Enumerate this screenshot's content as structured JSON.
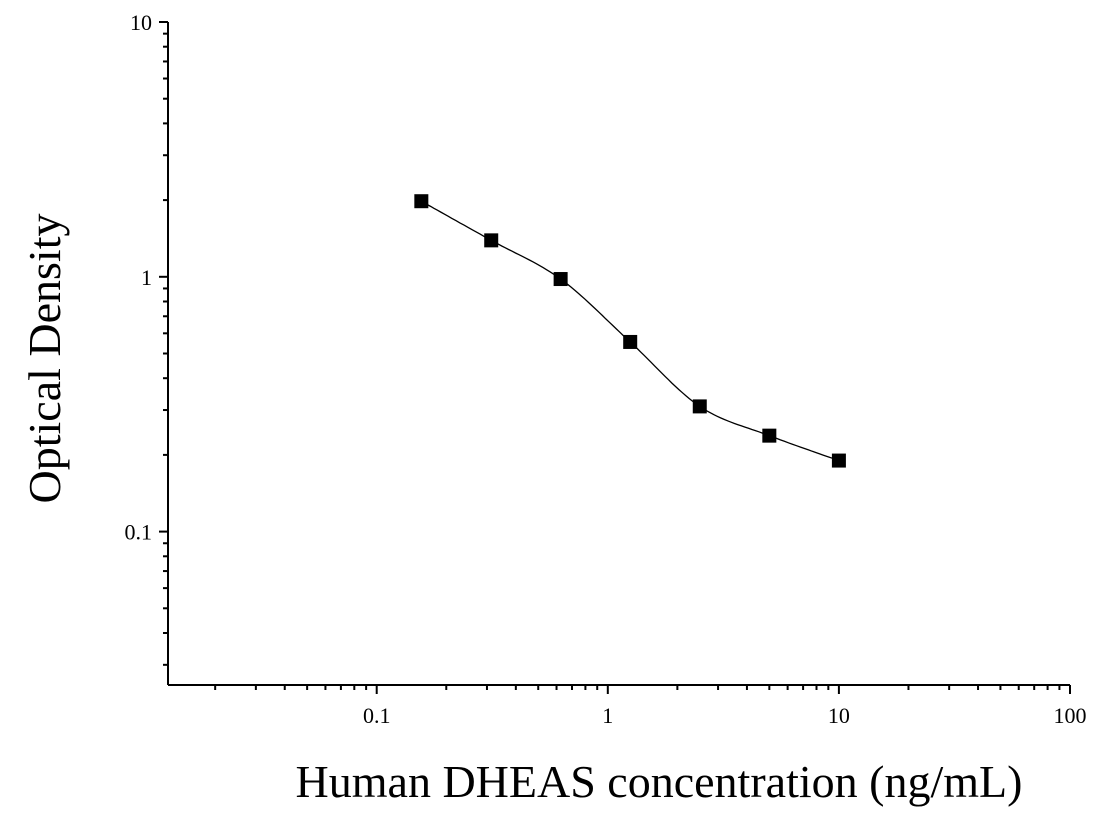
{
  "chart_data": {
    "type": "scatter",
    "title": "",
    "xlabel": "Human DHEAS concentration (ng/mL)",
    "ylabel": "Optical Density",
    "x_scale": "log",
    "y_scale": "log",
    "xlim": [
      0.0125,
      100
    ],
    "ylim": [
      0.025,
      10
    ],
    "grid": false,
    "legend": "none",
    "x_tick_labels": [
      "0.1",
      "1",
      "10",
      "100"
    ],
    "y_tick_labels": [
      "0.1",
      "1",
      "10"
    ],
    "series": [
      {
        "points": [
          {
            "x": 0.156,
            "y": 1.98
          },
          {
            "x": 0.313,
            "y": 1.39
          },
          {
            "x": 0.625,
            "y": 0.98
          },
          {
            "x": 1.25,
            "y": 0.555
          },
          {
            "x": 2.5,
            "y": 0.31
          },
          {
            "x": 5,
            "y": 0.238
          },
          {
            "x": 10,
            "y": 0.19
          }
        ],
        "fit": "4PL",
        "marker": "square",
        "color": "#000000"
      }
    ]
  }
}
